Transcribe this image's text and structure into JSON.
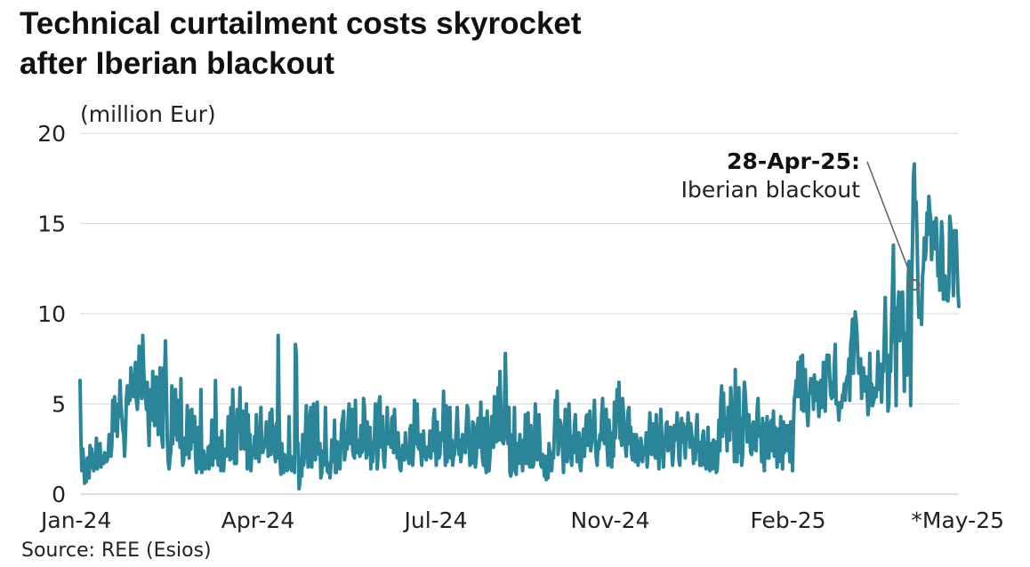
{
  "title_line1": "Technical curtailment costs skyrocket",
  "title_line2": "after Iberian blackout",
  "source": "Source: REE (Esios)",
  "colors": {
    "line": "#2a8599",
    "grid": "#d9d9d9",
    "text": "#222222",
    "annotation": "#666666"
  },
  "chart_data": {
    "type": "line",
    "title": "Technical curtailment costs skyrocket after Iberian blackout",
    "ylabel": "(million Eur)",
    "xlabel": "",
    "ylim": [
      0,
      20
    ],
    "yticks": [
      0,
      5,
      10,
      15,
      20
    ],
    "grid": true,
    "xlim": [
      0,
      247
    ],
    "xticks": [
      {
        "label": "Jan-24",
        "x": 0
      },
      {
        "label": "Apr-24",
        "x": 50
      },
      {
        "label": "Jul-24",
        "x": 100
      },
      {
        "label": "Nov-24",
        "x": 149
      },
      {
        "label": "Feb-25",
        "x": 199
      },
      {
        "label": "*May-25",
        "x": 247
      }
    ],
    "series": [
      {
        "name": "Technical curtailment costs",
        "values": [
          6.3,
          3.0,
          1.3,
          2.5,
          1.8,
          0.6,
          0.8,
          0.7,
          2.0,
          1.3,
          0.9,
          2.7,
          1.5,
          2.5,
          1.6,
          1.3,
          2.2,
          1.5,
          3.1,
          1.4,
          2.1,
          1.7,
          2.8,
          1.5,
          2.0,
          2.1,
          1.7,
          2.3,
          2.2,
          1.8,
          1.9,
          2.2,
          3.3,
          2.5,
          2.1,
          2.7,
          5.2,
          3.6,
          5.4,
          3.5,
          4.8,
          3.2,
          5.0,
          4.3,
          6.3,
          5.0,
          4.3,
          3.6,
          3.3,
          2.1,
          3.3,
          5.3,
          6.0,
          5.0,
          6.0,
          5.2,
          7.0,
          5.8,
          6.2,
          5.4,
          6.4,
          7.3,
          5.2,
          4.7,
          5.5,
          8.2,
          6.0,
          6.5,
          5.3,
          8.8,
          7.0,
          5.8,
          5.5,
          4.7,
          6.2,
          4.0,
          2.7,
          5.6,
          5.8,
          4.1,
          6.8,
          5.3,
          3.8,
          6.3,
          6.5,
          6.0,
          3.3,
          4.3,
          7.0,
          6.1,
          3.1,
          2.6,
          7.0,
          6.3,
          8.5,
          5.8,
          3.1,
          1.8,
          1.4,
          2.0,
          2.4,
          6.0,
          2.8,
          4.5,
          3.3,
          5.8,
          4.1,
          3.0,
          5.2,
          4.0,
          2.6,
          6.4,
          2.7,
          1.6,
          1.8,
          3.1,
          2.2,
          2.8,
          4.9,
          3.5,
          2.0,
          4.6,
          2.5,
          4.7,
          3.5,
          2.9,
          4.3,
          2.2,
          1.2,
          2.3,
          3.7,
          1.7,
          1.4,
          5.8,
          1.2,
          1.5,
          2.4,
          1.9,
          1.4,
          2.1,
          1.8,
          2.6,
          1.4,
          2.7,
          2.0,
          4.1,
          1.6,
          3.1,
          2.0,
          6.3,
          3.4,
          2.2,
          1.6,
          3.1,
          2.4,
          1.3,
          3.5,
          1.8,
          1.3,
          2.3,
          2.5,
          2.1,
          2.5,
          4.3,
          3.9,
          1.9,
          4.8,
          2.0,
          5.8,
          4.0,
          1.7,
          2.0,
          1.7,
          4.7,
          3.5,
          3.5,
          5.9,
          2.5,
          4.0,
          4.6,
          3.6,
          2.5,
          3.6,
          5.0,
          1.4,
          4.4,
          2.6,
          3.3,
          1.3,
          2.3,
          2.6,
          2.2,
          3.2,
          2.0,
          4.4,
          2.7,
          2.1,
          1.8,
          3.2,
          4.8,
          2.4,
          2.3,
          2.5,
          2.7,
          3.2,
          4.0,
          3.6,
          2.1,
          3.2,
          4.5,
          2.2,
          4.7,
          3.1,
          3.7,
          2.3,
          1.8,
          3.9,
          2.0,
          8.8,
          4.7,
          2.0,
          1.1,
          2.8,
          1.5,
          1.2,
          2.2,
          1.7,
          1.5,
          1.3,
          1.4,
          4.3,
          1.5,
          2.1,
          1.3,
          1.5,
          2.0,
          1.2,
          8.3,
          7.7,
          2.6,
          2.8,
          0.3,
          0.7,
          2.0,
          1.0,
          3.3,
          1.6,
          2.2,
          3.4,
          4.9,
          2.5,
          1.5,
          2.2,
          4.3,
          4.8,
          1.5,
          3.4,
          5.0,
          2.0,
          1.9,
          3.6,
          5.1,
          2.7,
          2.2,
          2.8,
          0.9,
          1.2,
          2.4,
          1.6,
          2.0,
          4.8,
          2.3,
          1.3,
          1.2,
          1.7,
          0.9,
          1.5,
          3.0,
          2.7,
          1.8,
          4.1,
          1.2,
          1.2,
          2.9,
          1.6,
          1.9,
          1.4,
          2.8,
          3.9,
          4.2,
          4.6,
          1.9,
          2.3,
          3.4,
          2.5,
          4.2,
          5.0,
          2.8,
          3.6,
          4.7,
          2.4,
          2.1,
          2.0,
          5.2,
          2.3,
          3.0,
          2.9,
          2.3,
          2.1,
          3.8,
          2.3,
          2.5,
          5.3,
          4.8,
          3.3,
          2.0,
          4.0,
          2.2,
          2.9,
          3.7,
          1.4,
          2.8,
          1.8,
          2.6,
          3.3,
          5.0,
          4.0,
          1.4,
          2.2,
          5.1,
          5.4,
          3.0,
          2.6,
          4.3,
          2.0,
          1.5,
          2.6,
          2.9,
          4.8,
          2.8,
          2.9,
          3.1,
          2.6,
          4.2,
          4.3,
          2.3,
          4.7,
          3.1,
          3.2,
          2.0,
          3.4,
          2.1,
          1.4,
          1.3,
          2.1,
          2.7,
          2.0,
          1.9,
          3.4,
          2.2,
          2.1,
          2.0,
          1.7,
          3.6,
          3.8,
          2.0,
          1.6,
          2.6,
          5.2,
          3.6,
          2.8,
          5.0,
          2.6,
          2.5,
          3.3,
          2.3,
          1.6,
          2.7,
          3.5,
          2.1,
          2.2,
          1.9,
          2.6,
          2.1,
          2.3,
          3.5,
          2.0,
          3.3,
          2.4,
          4.2,
          4.7,
          3.0,
          1.6,
          4.0,
          2.4,
          2.0,
          2.2,
          3.4,
          3.0,
          3.4,
          5.7,
          3.0,
          1.6,
          4.9,
          1.8,
          4.1,
          2.3,
          4.8,
          2.0,
          3.0,
          1.6,
          2.1,
          2.2,
          2.8,
          3.6,
          4.8,
          3.3,
          2.2,
          3.0,
          1.8,
          2.3,
          3.3,
          3.2,
          2.5,
          2.3,
          3.8,
          4.9,
          4.7,
          3.0,
          1.6,
          2.8,
          1.7,
          4.0,
          3.9,
          3.3,
          1.5,
          2.0,
          3.5,
          4.2,
          2.6,
          3.3,
          5.1,
          2.7,
          1.9,
          1.6,
          4.2,
          1.7,
          1.2,
          4.6,
          2.8,
          1.3,
          2.0,
          3.0,
          4.3,
          3.4,
          2.6,
          5.4,
          4.5,
          2.9,
          3.4,
          5.9,
          3.0,
          6.8,
          4.8,
          3.4,
          2.9,
          2.8,
          4.8,
          7.8,
          5.3,
          3.1,
          2.8,
          4.8,
          1.2,
          1.0,
          1.3,
          3.3,
          2.1,
          4.8,
          1.3,
          1.1,
          2.8,
          1.7,
          2.5,
          3.3,
          1.7,
          2.5,
          1.3,
          3.0,
          1.8,
          4.4,
          1.7,
          2.1,
          4.5,
          1.7,
          1.5,
          3.8,
          1.6,
          1.5,
          1.6,
          3.3,
          5.0,
          2.4,
          1.9,
          3.2,
          4.4,
          2.8,
          1.6,
          1.5,
          2.2,
          1.6,
          1.0,
          2.1,
          0.8,
          1.6,
          0.9,
          2.8,
          2.2,
          1.3,
          1.3,
          2.3,
          2.0,
          3.5,
          5.2,
          4.1,
          5.7,
          2.2,
          2.8,
          4.1,
          3.9,
          3.4,
          2.4,
          1.2,
          3.5,
          4.7,
          2.6,
          1.8,
          2.4,
          5.0,
          3.5,
          2.1,
          1.6,
          3.2,
          2.3,
          3.8,
          4.4,
          2.9,
          1.8,
          2.7,
          3.4,
          1.6,
          1.3,
          2.1,
          3.0,
          3.6,
          2.1,
          3.2,
          4.3,
          4.4,
          2.7,
          3.9,
          4.6,
          2.4,
          2.9,
          4.1,
          3.7,
          5.2,
          3.0,
          2.0,
          1.6,
          2.9,
          2.5,
          3.3,
          3.0,
          4.4,
          5.3,
          3.2,
          2.8,
          3.3,
          4.7,
          2.5,
          1.6,
          4.1,
          3.3,
          2.9,
          1.5,
          3.4,
          2.1,
          5.1,
          3.1,
          4.2,
          5.8,
          4.3,
          6.2,
          3.1,
          3.2,
          2.7,
          5.3,
          4.5,
          3.6,
          2.7,
          2.1,
          3.1,
          4.6,
          4.8,
          2.8,
          3.7,
          2.2,
          1.9,
          3.3,
          2.4,
          1.8,
          3.3,
          2.9,
          1.6,
          2.1,
          1.9,
          3.1,
          2.7,
          1.8,
          2.6,
          2.4,
          2.2,
          3.4,
          1.5,
          2.2,
          3.1,
          4.5,
          3.3,
          2.2,
          3.0,
          3.9,
          2.4,
          2.0,
          4.4,
          2.9,
          2.8,
          1.4,
          3.1,
          4.7,
          3.5,
          2.5,
          1.5,
          2.8,
          2.9,
          3.9,
          4.0,
          2.4,
          3.0,
          3.7,
          3.7,
          2.5,
          1.6,
          2.3,
          3.8,
          3.0,
          3.2,
          4.5,
          3.3,
          1.9,
          1.6,
          3.7,
          4.2,
          2.9,
          3.9,
          2.8,
          2.0,
          3.7,
          3.1,
          4.5,
          3.7,
          2.6,
          3.9,
          3.3,
          3.0,
          1.7,
          3.0,
          1.9,
          3.6,
          4.4,
          2.4,
          2.9,
          1.6,
          2.1,
          1.6,
          3.2,
          3.5,
          2.0,
          1.6,
          1.4,
          2.4,
          3.7,
          2.0,
          1.3,
          2.8,
          2.2,
          1.4,
          3.0,
          2.6,
          2.9,
          1.2,
          1.3,
          2.3,
          4.1,
          2.4,
          5.1,
          6.0,
          3.2,
          5.6,
          3.5,
          4.2,
          3.9,
          2.4,
          4.8,
          3.4,
          3.0,
          5.9,
          4.9,
          3.6,
          4.6,
          1.8,
          6.9,
          2.4,
          1.8,
          4.9,
          5.9,
          2.3,
          4.2,
          1.6,
          2.1,
          4.8,
          6.2,
          5.6,
          4.6,
          2.9,
          4.1,
          4.4,
          3.1,
          2.3,
          2.2,
          3.8,
          4.0,
          2.5,
          2.8,
          2.4,
          4.6,
          5.3,
          3.4,
          3.2,
          3.7,
          1.8,
          4.2,
          2.0,
          1.3,
          3.9,
          2.9,
          4.3,
          2.0,
          2.0,
          3.8,
          4.0,
          4.1,
          2.4,
          4.6,
          2.1,
          3.7,
          3.0,
          1.5,
          3.6,
          1.8,
          2.3,
          4.3,
          2.7,
          1.4,
          4.0,
          2.3,
          3.4,
          3.8,
          3.6,
          2.4,
          3.8,
          1.8,
          4.0,
          4.0,
          1.3,
          3.8,
          5.3,
          5.6,
          6.3,
          5.4,
          7.3,
          6.0,
          5.4,
          7.6,
          4.7,
          7.7,
          4.6,
          5.8,
          6.9,
          5.4,
          4.5,
          3.8,
          5.4,
          5.7,
          6.4,
          5.6,
          6.4,
          4.7,
          6.6,
          5.2,
          5.3,
          6.2,
          5.2,
          4.3,
          5.2,
          6.3,
          4.8,
          5.4,
          7.3,
          5.1,
          4.6,
          6.9,
          7.7,
          7.4,
          7.7,
          6.5,
          5.5,
          5.3,
          6.2,
          5.4,
          7.2,
          8.3,
          5.0,
          5.1,
          4.9,
          4.1,
          5.0,
          5.1,
          4.8,
          5.5,
          5.5,
          6.1,
          5.2,
          6.2,
          6.5,
          6.5,
          7.5,
          5.2,
          8.3,
          8.7,
          9.7,
          6.7,
          8.9,
          10.1,
          9.6,
          8.8,
          7.4,
          6.7,
          7.3,
          7.5,
          5.3,
          6.9,
          7.0,
          6.1,
          5.7,
          6.5,
          5.7,
          4.4,
          4.9,
          7.8,
          5.5,
          6.1,
          4.9,
          5.1,
          5.3,
          5.9,
          5.4,
          6.1,
          7.9,
          6.5,
          5.8,
          7.2,
          5.1,
          6.8,
          6.8,
          8.8,
          10.9,
          7.8,
          7.7,
          4.6,
          5.0,
          7.7,
          6.8,
          9.5,
          11.6,
          13.8,
          8.6,
          8.3,
          4.9,
          10.3,
          10.4,
          11.2,
          8.5,
          9.9,
          10.3,
          11.2,
          9.2,
          5.7,
          8.9,
          7.0,
          6.6,
          11.5,
          12.9,
          11.2,
          4.9,
          11.7,
          13.8,
          17.6,
          18.3,
          15.4,
          16.2,
          14.3,
          11.6,
          9.8,
          10.1,
          10.6,
          9.4,
          12.0,
          12.6,
          14.2,
          13.0,
          13.6,
          15.6,
          14.4,
          16.5,
          15.7,
          15.3,
          13.0,
          14.0,
          14.5,
          15.1,
          13.6,
          15.3,
          14.1,
          12.1,
          13.0,
          11.3,
          12.9,
          15.1,
          14.3,
          10.8,
          11.7,
          12.1,
          10.8,
          11.1,
          10.7,
          11.5,
          15.4,
          14.9,
          13.3,
          13.1,
          11.0,
          14.6,
          13.9,
          14.6,
          12.8,
          11.2,
          10.4
        ]
      }
    ],
    "annotations": [
      {
        "label_bold": "28-Apr-25:",
        "label": "Iberian blackout",
        "x": 234.5,
        "y": 11.6
      }
    ]
  }
}
